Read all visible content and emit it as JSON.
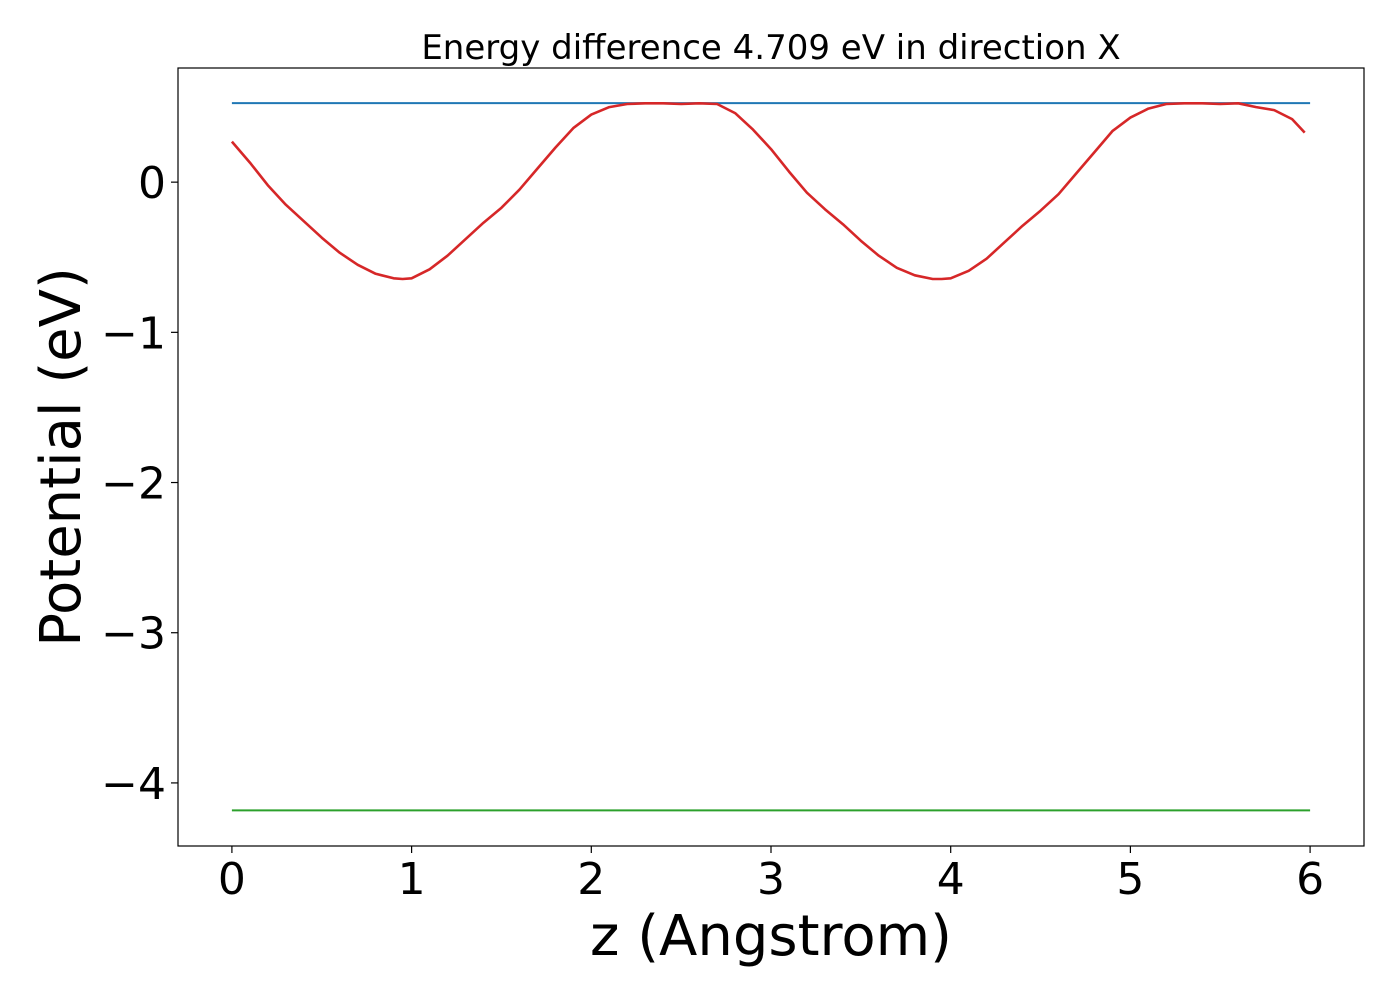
{
  "chart_data": {
    "type": "line",
    "title": "Energy difference 4.709 eV in direction X",
    "xlabel": "z (Angstrom)",
    "ylabel": "Potential (eV)",
    "xlim": [
      -0.3,
      6.3
    ],
    "ylim": [
      -4.42,
      0.76
    ],
    "xticks": [
      0,
      1,
      2,
      3,
      4,
      5,
      6
    ],
    "xtick_labels": [
      "0",
      "1",
      "2",
      "3",
      "4",
      "5",
      "6"
    ],
    "yticks": [
      0,
      -1,
      -2,
      -3,
      -4
    ],
    "ytick_labels": [
      "0",
      "−1",
      "−2",
      "−3",
      "−4"
    ],
    "grid": false,
    "legend": "none",
    "series": [
      {
        "color": "#1f77b4",
        "x": [
          0,
          6
        ],
        "y": [
          0.526,
          0.526
        ]
      },
      {
        "color": "#2ca02c",
        "x": [
          0,
          6
        ],
        "y": [
          -4.183,
          -4.183
        ]
      },
      {
        "color": "#d62728",
        "x": [
          0,
          0.1,
          0.2,
          0.3,
          0.4,
          0.5,
          0.6,
          0.7,
          0.8,
          0.9,
          0.95,
          1.0,
          1.1,
          1.2,
          1.3,
          1.4,
          1.5,
          1.6,
          1.7,
          1.8,
          1.9,
          2.0,
          2.1,
          2.2,
          2.3,
          2.4,
          2.5,
          2.6,
          2.7,
          2.8,
          2.9,
          3.0,
          3.1,
          3.2,
          3.3,
          3.4,
          3.5,
          3.6,
          3.7,
          3.8,
          3.9,
          3.95,
          4.0,
          4.1,
          4.2,
          4.3,
          4.4,
          4.5,
          4.6,
          4.7,
          4.8,
          4.9,
          5.0,
          5.1,
          5.2,
          5.3,
          5.4,
          5.5,
          5.6,
          5.7,
          5.8,
          5.9,
          5.97
        ],
        "y": [
          0.27,
          0.13,
          -0.02,
          -0.15,
          -0.26,
          -0.37,
          -0.47,
          -0.55,
          -0.61,
          -0.64,
          -0.645,
          -0.64,
          -0.58,
          -0.49,
          -0.38,
          -0.27,
          -0.17,
          -0.05,
          0.09,
          0.23,
          0.36,
          0.45,
          0.5,
          0.52,
          0.525,
          0.525,
          0.52,
          0.525,
          0.52,
          0.46,
          0.35,
          0.22,
          0.07,
          -0.07,
          -0.18,
          -0.28,
          -0.39,
          -0.49,
          -0.57,
          -0.62,
          -0.645,
          -0.645,
          -0.64,
          -0.59,
          -0.51,
          -0.4,
          -0.29,
          -0.19,
          -0.08,
          0.06,
          0.2,
          0.34,
          0.43,
          0.49,
          0.52,
          0.525,
          0.525,
          0.52,
          0.525,
          0.5,
          0.48,
          0.42,
          0.33
        ]
      }
    ]
  }
}
